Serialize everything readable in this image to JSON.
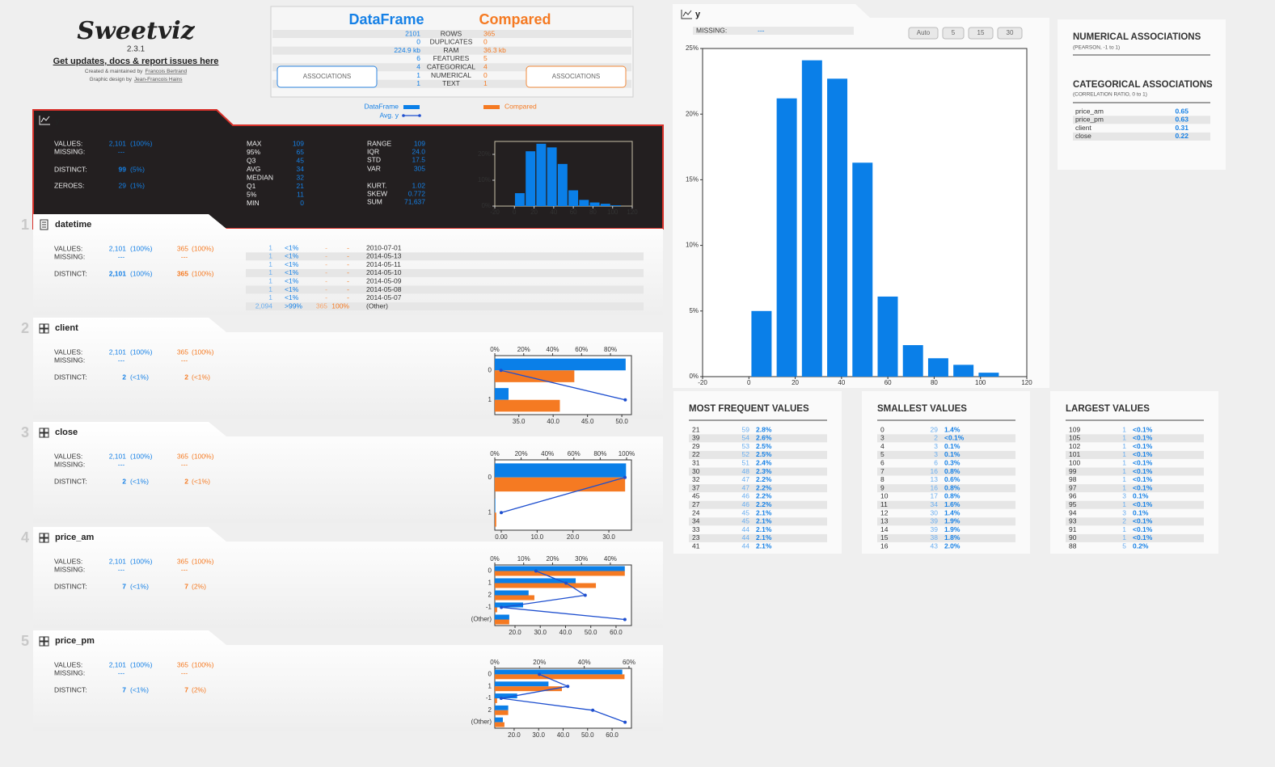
{
  "header": {
    "logo": "Sweetviz",
    "version": "2.3.1",
    "link": "Get updates, docs & report issues here",
    "credit_by": "Created & maintained by",
    "credit_name": "Francois Bertrand",
    "design_by": "Graphic design by",
    "design_name": "Jean-Francois Hains"
  },
  "summary": {
    "source_name": "DataFrame",
    "compare_name": "Compared",
    "rows": [
      {
        "label": "ROWS",
        "source": "2101",
        "compare": "365"
      },
      {
        "label": "DUPLICATES",
        "source": "0",
        "compare": "0"
      },
      {
        "label": "RAM",
        "source": "224.9 kb",
        "compare": "36.3 kb"
      },
      {
        "label": "FEATURES",
        "source": "6",
        "compare": "5"
      },
      {
        "label": "CATEGORICAL",
        "source": "4",
        "compare": "4"
      },
      {
        "label": "NUMERICAL",
        "source": "1",
        "compare": "0"
      },
      {
        "label": "TEXT",
        "source": "1",
        "compare": "1"
      }
    ],
    "associations_button": "ASSOCIATIONS",
    "legend": {
      "source": "DataFrame",
      "avg": "Avg. y",
      "compare": "Compared"
    }
  },
  "labels": {
    "values": "VALUES:",
    "missing": "MISSING:",
    "distinct": "DISTINCT:",
    "zeroes": "ZEROES:"
  },
  "target": {
    "name": "y",
    "values": {
      "count": "2,101",
      "pct": "(100%)"
    },
    "missing": "---",
    "distinct": {
      "count": "99",
      "pct": "(5%)"
    },
    "zeroes": {
      "count": "29",
      "pct": "(1%)"
    },
    "stats_left": [
      {
        "label": "MAX",
        "value": "109"
      },
      {
        "label": "95%",
        "value": "65"
      },
      {
        "label": "Q3",
        "value": "45"
      },
      {
        "label": "AVG",
        "value": "34"
      },
      {
        "label": "MEDIAN",
        "value": "32"
      },
      {
        "label": "Q1",
        "value": "21"
      },
      {
        "label": "5%",
        "value": "11"
      },
      {
        "label": "MIN",
        "value": "0"
      }
    ],
    "stats_right": [
      {
        "label": "RANGE",
        "value": "109"
      },
      {
        "label": "IQR",
        "value": "24.0"
      },
      {
        "label": "STD",
        "value": "17.5"
      },
      {
        "label": "VAR",
        "value": "305"
      },
      {
        "label": "KURT.",
        "value": "1.02"
      },
      {
        "label": "SKEW",
        "value": "0.772"
      },
      {
        "label": "SUM",
        "value": "71,637"
      }
    ],
    "histogram": {
      "type": "histogram",
      "bins": [
        0,
        10.9,
        21.8,
        32.7,
        43.6,
        54.5,
        65.4,
        76.3,
        87.2,
        98.1,
        109
      ],
      "values": [
        5.0,
        21.2,
        24.1,
        22.7,
        16.3,
        6.1,
        2.4,
        1.4,
        0.9,
        0.3
      ],
      "color": "#0a7fe8",
      "xlim": [
        -20,
        120
      ],
      "xticks": [
        -20,
        0,
        20,
        40,
        60,
        80,
        100,
        120
      ],
      "ylim": [
        0,
        25
      ],
      "yticks": [
        {
          "value": 0,
          "label": "0%"
        },
        {
          "value": 5,
          "label": "5%"
        },
        {
          "value": 10,
          "label": "10%"
        },
        {
          "value": 15,
          "label": "15%"
        },
        {
          "value": 20,
          "label": "20%"
        },
        {
          "value": 25,
          "label": "25%"
        }
      ],
      "thumbnail_yticks": [
        {
          "value": 0,
          "label": "0%"
        },
        {
          "value": 10,
          "label": "10%"
        },
        {
          "value": 20,
          "label": "20%"
        }
      ]
    }
  },
  "detail": {
    "bin_buttons": [
      "Auto",
      "5",
      "15",
      "30"
    ]
  },
  "associations": {
    "numerical_title": "NUMERICAL ASSOCIATIONS",
    "numerical_subtitle": "(PEARSON, -1 to 1)",
    "categorical_title": "CATEGORICAL ASSOCIATIONS",
    "categorical_subtitle": "(CORRELATION RATIO, 0 to 1)",
    "categorical": [
      {
        "name": "price_am",
        "value": "0.65"
      },
      {
        "name": "price_pm",
        "value": "0.63"
      },
      {
        "name": "client",
        "value": "0.31"
      },
      {
        "name": "close",
        "value": "0.22"
      }
    ]
  },
  "tables": [
    {
      "title": "MOST FREQUENT VALUES",
      "rows": [
        [
          "21",
          "59",
          "2.8%"
        ],
        [
          "39",
          "54",
          "2.6%"
        ],
        [
          "29",
          "53",
          "2.5%"
        ],
        [
          "22",
          "52",
          "2.5%"
        ],
        [
          "31",
          "51",
          "2.4%"
        ],
        [
          "30",
          "48",
          "2.3%"
        ],
        [
          "32",
          "47",
          "2.2%"
        ],
        [
          "37",
          "47",
          "2.2%"
        ],
        [
          "45",
          "46",
          "2.2%"
        ],
        [
          "27",
          "46",
          "2.2%"
        ],
        [
          "24",
          "45",
          "2.1%"
        ],
        [
          "34",
          "45",
          "2.1%"
        ],
        [
          "33",
          "44",
          "2.1%"
        ],
        [
          "23",
          "44",
          "2.1%"
        ],
        [
          "41",
          "44",
          "2.1%"
        ]
      ]
    },
    {
      "title": "SMALLEST VALUES",
      "rows": [
        [
          "0",
          "29",
          "1.4%"
        ],
        [
          "3",
          "2",
          "<0.1%"
        ],
        [
          "4",
          "3",
          "0.1%"
        ],
        [
          "5",
          "3",
          "0.1%"
        ],
        [
          "6",
          "6",
          "0.3%"
        ],
        [
          "7",
          "16",
          "0.8%"
        ],
        [
          "8",
          "13",
          "0.6%"
        ],
        [
          "9",
          "16",
          "0.8%"
        ],
        [
          "10",
          "17",
          "0.8%"
        ],
        [
          "11",
          "34",
          "1.6%"
        ],
        [
          "12",
          "30",
          "1.4%"
        ],
        [
          "13",
          "39",
          "1.9%"
        ],
        [
          "14",
          "39",
          "1.9%"
        ],
        [
          "15",
          "38",
          "1.8%"
        ],
        [
          "16",
          "43",
          "2.0%"
        ]
      ]
    },
    {
      "title": "LARGEST VALUES",
      "rows": [
        [
          "109",
          "1",
          "<0.1%"
        ],
        [
          "105",
          "1",
          "<0.1%"
        ],
        [
          "102",
          "1",
          "<0.1%"
        ],
        [
          "101",
          "1",
          "<0.1%"
        ],
        [
          "100",
          "1",
          "<0.1%"
        ],
        [
          "99",
          "1",
          "<0.1%"
        ],
        [
          "98",
          "1",
          "<0.1%"
        ],
        [
          "97",
          "1",
          "<0.1%"
        ],
        [
          "96",
          "3",
          "0.1%"
        ],
        [
          "95",
          "1",
          "<0.1%"
        ],
        [
          "94",
          "3",
          "0.1%"
        ],
        [
          "93",
          "2",
          "<0.1%"
        ],
        [
          "91",
          "1",
          "<0.1%"
        ],
        [
          "90",
          "1",
          "<0.1%"
        ],
        [
          "88",
          "5",
          "0.2%"
        ]
      ]
    }
  ],
  "features": [
    {
      "index": "1",
      "name": "datetime",
      "values": {
        "source": "2,101",
        "source_pct": "(100%)",
        "compare": "365",
        "compare_pct": "(100%)"
      },
      "missing": {
        "source": "---",
        "compare": "---"
      },
      "distinct": {
        "source": "2,101",
        "source_pct": "(100%)",
        "compare": "365",
        "compare_pct": "(100%)"
      },
      "top_values": [
        {
          "source": "1",
          "source_pct": "<1%",
          "compare": "-",
          "compare_pct": "-",
          "value": "2010-07-01"
        },
        {
          "source": "1",
          "source_pct": "<1%",
          "compare": "-",
          "compare_pct": "-",
          "value": "2014-05-13"
        },
        {
          "source": "1",
          "source_pct": "<1%",
          "compare": "-",
          "compare_pct": "-",
          "value": "2014-05-11"
        },
        {
          "source": "1",
          "source_pct": "<1%",
          "compare": "-",
          "compare_pct": "-",
          "value": "2014-05-10"
        },
        {
          "source": "1",
          "source_pct": "<1%",
          "compare": "-",
          "compare_pct": "-",
          "value": "2014-05-09"
        },
        {
          "source": "1",
          "source_pct": "<1%",
          "compare": "-",
          "compare_pct": "-",
          "value": "2014-05-08"
        },
        {
          "source": "1",
          "source_pct": "<1%",
          "compare": "-",
          "compare_pct": "-",
          "value": "2014-05-07"
        },
        {
          "source": "2,094",
          "source_pct": ">99%",
          "compare": "365",
          "compare_pct": "100%",
          "value": "(Other)"
        }
      ]
    },
    {
      "index": "2",
      "name": "client",
      "values": {
        "source": "2,101",
        "source_pct": "(100%)",
        "compare": "365",
        "compare_pct": "(100%)"
      },
      "missing": {
        "source": "---",
        "compare": "---"
      },
      "distinct": {
        "source": "2",
        "source_pct": "(<1%)",
        "compare": "2",
        "compare_pct": "(<1%)"
      },
      "chart": {
        "type": "bar",
        "categories": [
          "0",
          "1"
        ],
        "series": [
          {
            "color": "#0a7fe8",
            "values": [
              90.5,
              9.5
            ]
          },
          {
            "color": "#f57a22",
            "values": [
              55,
              45
            ]
          },
          {
            "color": "#1e4fcf",
            "values": [
              32.4,
              50.5
            ],
            "axis": "x2"
          }
        ],
        "xlim": [
          0,
          94.5
        ],
        "xticks": [
          {
            "value": 0,
            "label": "0%"
          },
          {
            "value": 20,
            "label": "20%"
          },
          {
            "value": 40,
            "label": "40%"
          },
          {
            "value": 60,
            "label": "60%"
          },
          {
            "value": 80,
            "label": "80%"
          }
        ],
        "x2lim": [
          31.5,
          51.4
        ],
        "x2ticks": [
          {
            "value": 35,
            "label": "35.0"
          },
          {
            "value": 40,
            "label": "40.0"
          },
          {
            "value": 45,
            "label": "45.0"
          },
          {
            "value": 50,
            "label": "50.0"
          }
        ]
      }
    },
    {
      "index": "3",
      "name": "close",
      "values": {
        "source": "2,101",
        "source_pct": "(100%)",
        "compare": "365",
        "compare_pct": "(100%)"
      },
      "missing": {
        "source": "---",
        "compare": "---"
      },
      "distinct": {
        "source": "2",
        "source_pct": "(<1%)",
        "compare": "2",
        "compare_pct": "(<1%)"
      },
      "chart": {
        "type": "bar",
        "categories": [
          "0",
          "1"
        ],
        "series": [
          {
            "color": "#0a7fe8",
            "values": [
              99.6,
              0.4
            ]
          },
          {
            "color": "#f57a22",
            "values": [
              98.9,
              1.1
            ]
          },
          {
            "color": "#1e4fcf",
            "values": [
              34.5,
              0.0
            ],
            "axis": "x2"
          }
        ],
        "xlim": [
          0,
          103.7
        ],
        "xticks": [
          {
            "value": 0,
            "label": "0%"
          },
          {
            "value": 20,
            "label": "20%"
          },
          {
            "value": 40,
            "label": "40%"
          },
          {
            "value": 60,
            "label": "60%"
          },
          {
            "value": 80,
            "label": "80%"
          },
          {
            "value": 100,
            "label": "100%"
          }
        ],
        "x2lim": [
          -1.8,
          36.3
        ],
        "x2ticks": [
          {
            "value": 0,
            "label": "0.00"
          },
          {
            "value": 10,
            "label": "10.0"
          },
          {
            "value": 20,
            "label": "20.0"
          },
          {
            "value": 30,
            "label": "30.0"
          }
        ]
      }
    },
    {
      "index": "4",
      "name": "price_am",
      "values": {
        "source": "2,101",
        "source_pct": "(100%)",
        "compare": "365",
        "compare_pct": "(100%)"
      },
      "missing": {
        "source": "---",
        "compare": "---"
      },
      "distinct": {
        "source": "7",
        "source_pct": "(<1%)",
        "compare": "7",
        "compare_pct": "(2%)"
      },
      "chart": {
        "type": "bar",
        "categories": [
          "0",
          "1",
          "2",
          "-1",
          "(Other)"
        ],
        "series": [
          {
            "color": "#0a7fe8",
            "values": [
              45,
              28,
              11.7,
              9.8,
              5
            ]
          },
          {
            "color": "#f57a22",
            "values": [
              45,
              35,
              13.7,
              0.8,
              5
            ]
          },
          {
            "color": "#1e4fcf",
            "values": [
              28.3,
              40.2,
              47.8,
              14.6,
              63.5
            ],
            "axis": "x2"
          }
        ],
        "xlim": [
          0,
          47.3
        ],
        "xticks": [
          {
            "value": 0,
            "label": "0%"
          },
          {
            "value": 10,
            "label": "10%"
          },
          {
            "value": 20,
            "label": "20%"
          },
          {
            "value": 30,
            "label": "30%"
          },
          {
            "value": 40,
            "label": "40%"
          }
        ],
        "x2lim": [
          12,
          66.1
        ],
        "x2ticks": [
          {
            "value": 20,
            "label": "20.0"
          },
          {
            "value": 30,
            "label": "30.0"
          },
          {
            "value": 40,
            "label": "40.0"
          },
          {
            "value": 50,
            "label": "50.0"
          },
          {
            "value": 60,
            "label": "60.0"
          }
        ]
      }
    },
    {
      "index": "5",
      "name": "price_pm",
      "values": {
        "source": "2,101",
        "source_pct": "(100%)",
        "compare": "365",
        "compare_pct": "(100%)"
      },
      "missing": {
        "source": "---",
        "compare": "---"
      },
      "distinct": {
        "source": "7",
        "source_pct": "(<1%)",
        "compare": "7",
        "compare_pct": "(2%)"
      },
      "chart": {
        "type": "bar",
        "categories": [
          "0",
          "1",
          "-1",
          "2",
          "(Other)"
        ],
        "series": [
          {
            "color": "#0a7fe8",
            "values": [
              57,
              24,
              10,
              6,
              3.6
            ]
          },
          {
            "color": "#f57a22",
            "values": [
              58,
              30,
              1,
              6,
              4.3
            ]
          },
          {
            "color": "#1e4fcf",
            "values": [
              30.3,
              41.9,
              14.7,
              52.1,
              65.3
            ],
            "axis": "x2"
          }
        ],
        "xlim": [
          0,
          61.1
        ],
        "xticks": [
          {
            "value": 0,
            "label": "0%"
          },
          {
            "value": 20,
            "label": "20%"
          },
          {
            "value": 40,
            "label": "40%"
          },
          {
            "value": 60,
            "label": "60%"
          }
        ],
        "x2lim": [
          12.1,
          67.9
        ],
        "x2ticks": [
          {
            "value": 20,
            "label": "20.0"
          },
          {
            "value": 30,
            "label": "30.0"
          },
          {
            "value": 40,
            "label": "40.0"
          },
          {
            "value": 50,
            "label": "50.0"
          },
          {
            "value": 60,
            "label": "60.0"
          }
        ]
      }
    }
  ]
}
